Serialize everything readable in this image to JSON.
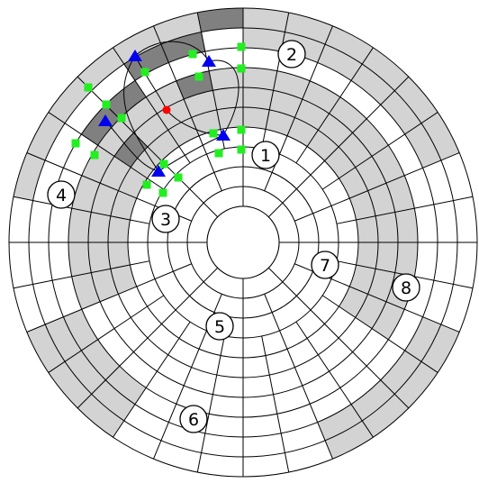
{
  "colors": {
    "light_fill": "#d3d3d3",
    "dark_fill": "#808080",
    "grid_line": "#000000",
    "square_marker": "#22ee22",
    "triangle_marker": "#0000ee",
    "red_marker": "#ff0000"
  },
  "labels": [
    {
      "id": "1",
      "text": "1"
    },
    {
      "id": "2",
      "text": "2"
    },
    {
      "id": "3",
      "text": "3"
    },
    {
      "id": "4",
      "text": "4"
    },
    {
      "id": "5",
      "text": "5"
    },
    {
      "id": "6",
      "text": "6"
    },
    {
      "id": "7",
      "text": "7"
    },
    {
      "id": "8",
      "text": "8"
    }
  ]
}
